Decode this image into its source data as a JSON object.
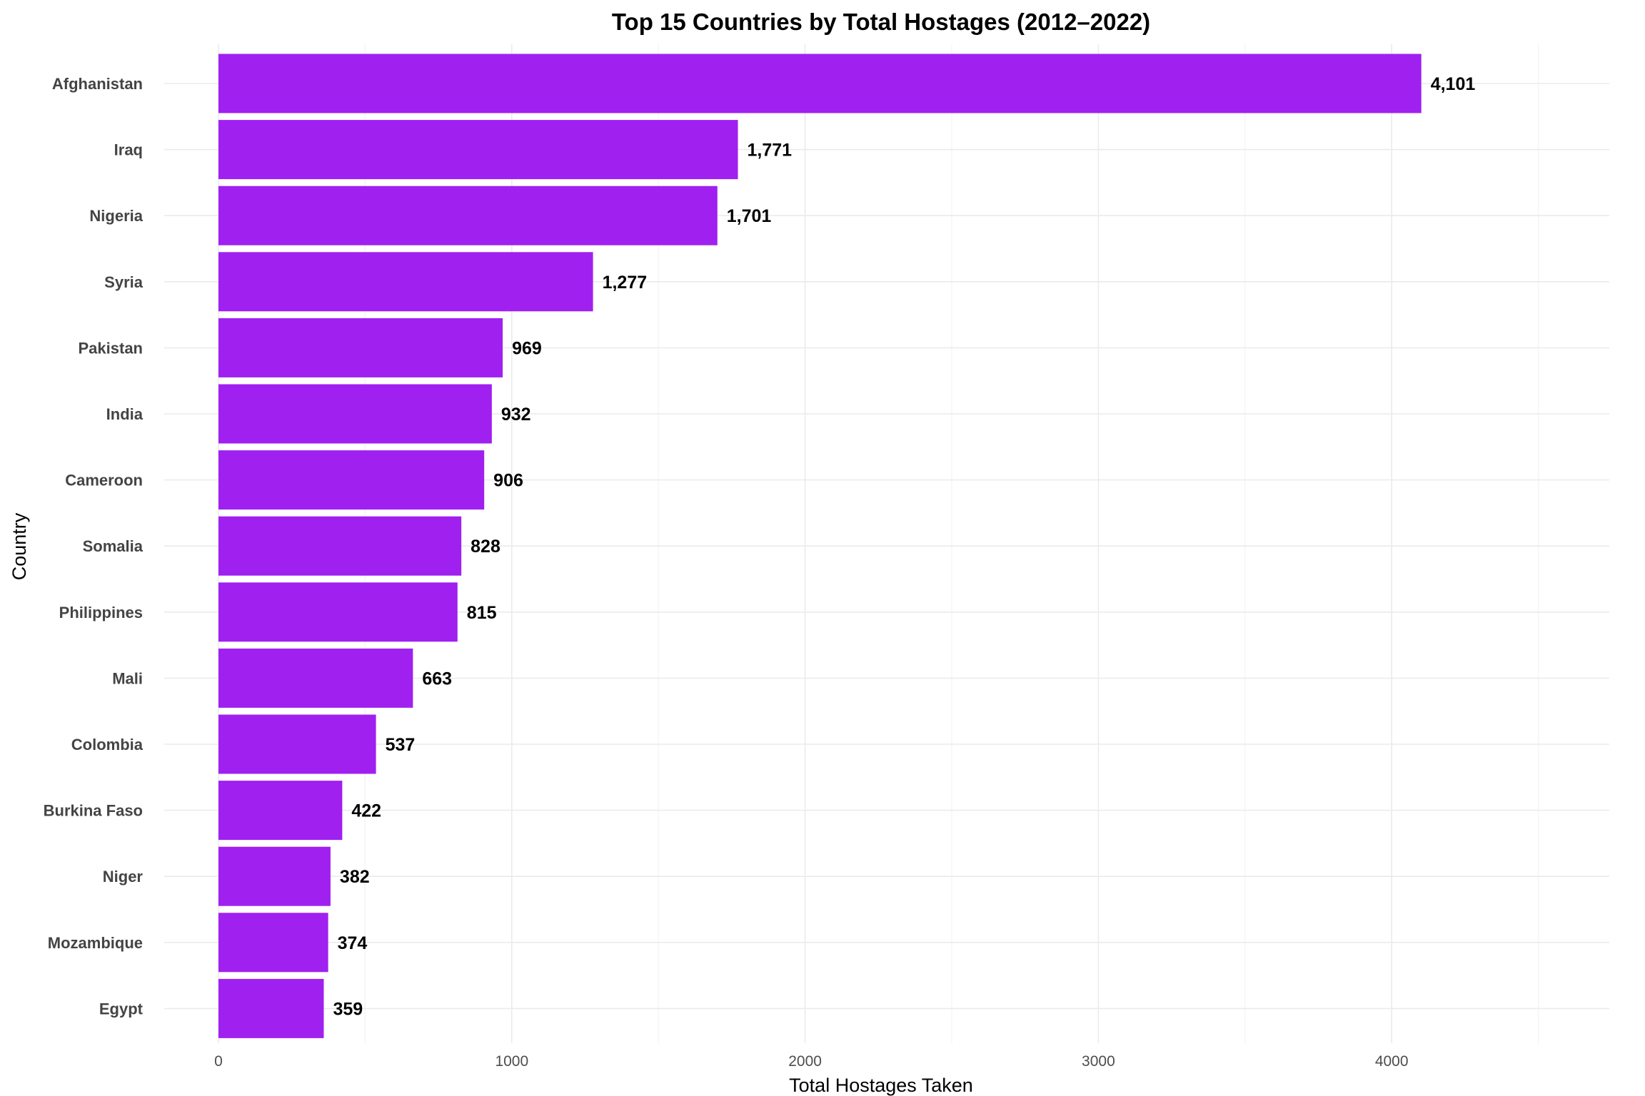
{
  "chart_data": {
    "type": "bar",
    "orientation": "horizontal",
    "title": "Top 15 Countries by Total Hostages (2012–2022)",
    "xlabel": "Total Hostages Taken",
    "ylabel": "Country",
    "categories": [
      "Afghanistan",
      "Iraq",
      "Nigeria",
      "Syria",
      "Pakistan",
      "India",
      "Cameroon",
      "Somalia",
      "Philippines",
      "Mali",
      "Colombia",
      "Burkina Faso",
      "Niger",
      "Mozambique",
      "Egypt"
    ],
    "values": [
      4101,
      1771,
      1701,
      1277,
      969,
      932,
      906,
      828,
      815,
      663,
      537,
      422,
      382,
      374,
      359
    ],
    "value_labels": [
      "4,101",
      "1,771",
      "1,701",
      "1,277",
      "969",
      "932",
      "906",
      "828",
      "815",
      "663",
      "537",
      "422",
      "382",
      "374",
      "359"
    ],
    "xlim": [
      0,
      4500
    ],
    "x_ticks": [
      0,
      1000,
      2000,
      3000,
      4000
    ],
    "x_tick_labels": [
      "0",
      "1000",
      "2000",
      "3000",
      "4000"
    ],
    "grid": true,
    "legend": "none",
    "bar_color": "#A020F0"
  }
}
